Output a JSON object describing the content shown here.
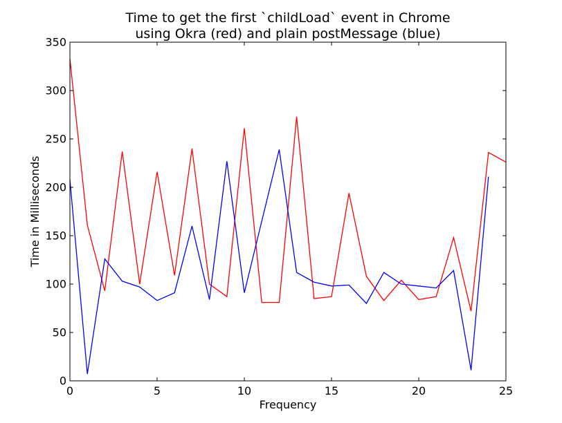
{
  "chart_data": {
    "type": "line",
    "title": "Time to get the first `childLoad` event in Chrome",
    "subtitle": "using Okra (red) and plain postMessage (blue)",
    "xlabel": "Frequency",
    "ylabel": "Time in Milliseconds",
    "xlim": [
      0,
      25
    ],
    "ylim": [
      0,
      350
    ],
    "xticks": [
      "0",
      "5",
      "10",
      "15",
      "20",
      "25"
    ],
    "yticks": [
      "0",
      "50",
      "100",
      "150",
      "200",
      "250",
      "300",
      "350"
    ],
    "grid": false,
    "legend": "none",
    "series": [
      {
        "color": "#ff0000",
        "x": [
          0,
          1,
          2,
          3,
          4,
          5,
          6,
          7,
          8,
          9,
          10,
          11,
          12,
          13,
          14,
          15,
          16,
          17,
          18,
          19,
          20,
          21,
          22,
          23,
          24,
          25
        ],
        "values": [
          333,
          161,
          93,
          237,
          100,
          216,
          109,
          240,
          100,
          87,
          261,
          81,
          81,
          273,
          85,
          87,
          194,
          108,
          83,
          104,
          84,
          87,
          148,
          72,
          236,
          226
        ]
      },
      {
        "color": "#0000ff",
        "x": [
          0,
          1,
          2,
          3,
          4,
          5,
          6,
          7,
          8,
          9,
          10,
          11,
          12,
          13,
          14,
          15,
          16,
          17,
          18,
          19,
          20,
          21,
          22,
          23,
          24
        ],
        "values": [
          208,
          7,
          126,
          103,
          97,
          83,
          91,
          160,
          84,
          227,
          91,
          165,
          239,
          112,
          102,
          98,
          99,
          80,
          112,
          100,
          98,
          96,
          114,
          11,
          211
        ]
      }
    ]
  }
}
